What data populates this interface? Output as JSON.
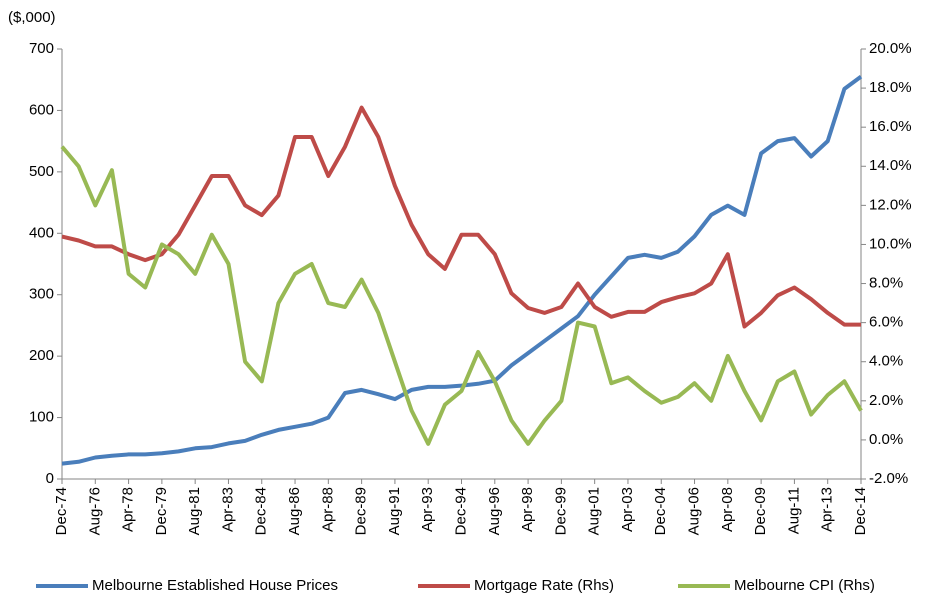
{
  "chart_data": {
    "type": "line",
    "y_label": "($,000)",
    "categories": [
      "Dec-74",
      null,
      "Aug-76",
      null,
      "Apr-78",
      null,
      "Dec-79",
      null,
      "Aug-81",
      null,
      "Apr-83",
      null,
      "Dec-84",
      null,
      "Aug-86",
      null,
      "Apr-88",
      null,
      "Dec-89",
      null,
      "Aug-91",
      null,
      "Apr-93",
      null,
      "Dec-94",
      null,
      "Aug-96",
      null,
      "Apr-98",
      null,
      "Dec-99",
      null,
      "Aug-01",
      null,
      "Apr-03",
      null,
      "Dec-04",
      null,
      "Aug-06",
      null,
      "Apr-08",
      null,
      "Dec-09",
      null,
      "Aug-11",
      null,
      "Apr-13",
      null,
      "Dec-14"
    ],
    "series": [
      {
        "name": "Melbourne Established House Prices",
        "color": "#4a7ebb",
        "values": [
          25,
          28,
          35,
          38,
          40,
          40,
          42,
          45,
          50,
          52,
          58,
          62,
          72,
          80,
          85,
          90,
          100,
          140,
          145,
          138,
          130,
          145,
          150,
          150,
          152,
          155,
          160,
          185,
          205,
          225,
          245,
          265,
          300,
          330,
          360,
          365,
          360,
          370,
          395,
          430,
          445,
          430,
          530,
          550,
          555,
          525,
          550,
          635,
          655
        ]
      },
      {
        "name": "Mortgage Rate (Rhs)",
        "color": "#be4b48",
        "axis": "y2",
        "values": [
          10.4,
          10.2,
          9.9,
          9.9,
          9.5,
          9.2,
          9.5,
          10.5,
          12,
          13.5,
          13.5,
          12,
          11.5,
          12.5,
          15.5,
          15.5,
          13.5,
          15,
          17,
          15.5,
          13,
          11,
          9.5,
          8.75,
          10.5,
          10.5,
          9.5,
          7.5,
          6.75,
          6.5,
          6.8,
          8,
          6.8,
          6.3,
          6.55,
          6.55,
          7.05,
          7.3,
          7.5,
          8,
          9.5,
          5.8,
          6.5,
          7.4,
          7.8,
          7.2,
          6.5,
          5.9,
          5.9
        ]
      },
      {
        "name": "Melbourne CPI (Rhs)",
        "color": "#98b954",
        "axis": "y2",
        "values": [
          15,
          14,
          12,
          13.8,
          8.5,
          7.8,
          10,
          9.5,
          8.5,
          10.5,
          9,
          4,
          3,
          7,
          8.5,
          9,
          7,
          6.8,
          8.2,
          6.5,
          4,
          1.5,
          -0.2,
          1.8,
          2.5,
          4.5,
          3,
          1,
          -0.2,
          1,
          2,
          6,
          5.8,
          2.9,
          3.2,
          2.5,
          1.9,
          2.2,
          2.9,
          2,
          4.3,
          2.5,
          1,
          3,
          3.5,
          1.3,
          2.3,
          3,
          1.5
        ]
      }
    ],
    "ylim": [
      0,
      700
    ],
    "yticks": [
      0,
      100,
      200,
      300,
      400,
      500,
      600,
      700
    ],
    "y2lim": [
      -2,
      20
    ],
    "y2ticks": [
      {
        "value": -2,
        "label": "-2.0%"
      },
      {
        "value": 0,
        "label": "0.0%"
      },
      {
        "value": 2,
        "label": "2.0%"
      },
      {
        "value": 4,
        "label": "4.0%"
      },
      {
        "value": 6,
        "label": "6.0%"
      },
      {
        "value": 8,
        "label": "8.0%"
      },
      {
        "value": 10,
        "label": "10.0%"
      },
      {
        "value": 12,
        "label": "12.0%"
      },
      {
        "value": 14,
        "label": "14.0%"
      },
      {
        "value": 16,
        "label": "16.0%"
      },
      {
        "value": 18,
        "label": "18.0%"
      },
      {
        "value": 20,
        "label": "20.0%"
      }
    ],
    "grid": false,
    "legend": "bottom"
  }
}
